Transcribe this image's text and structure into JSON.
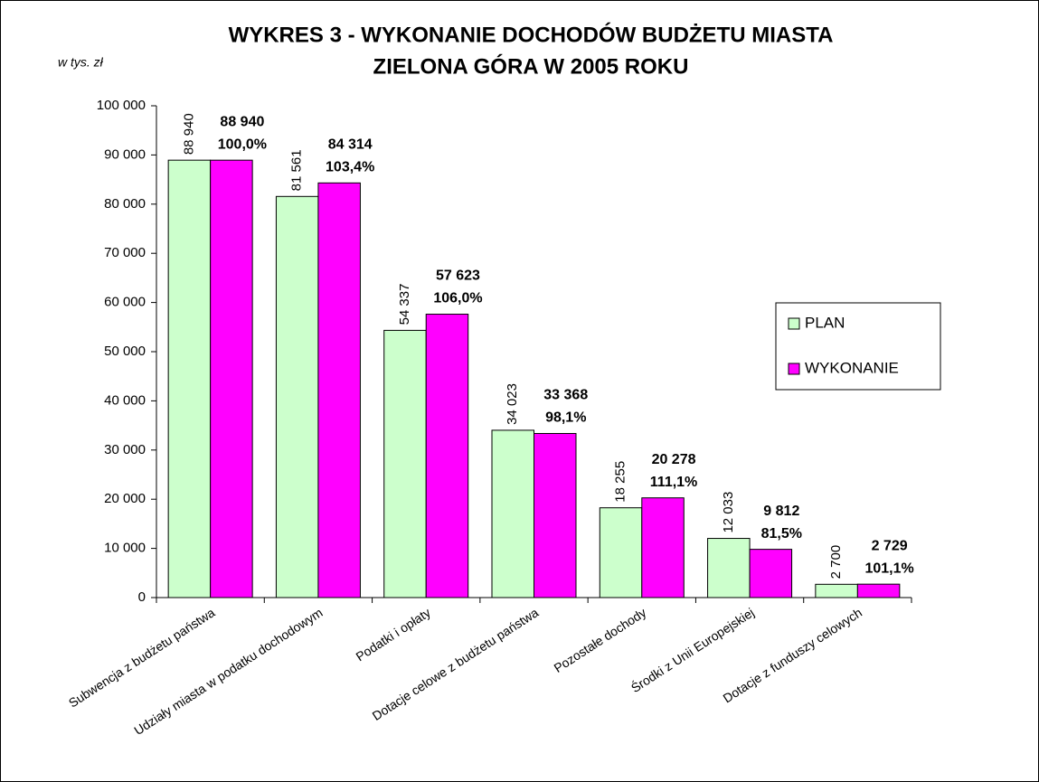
{
  "chart_data": {
    "type": "bar",
    "title": "WYKRES 3 - WYKONANIE DOCHODÓW BUDŻETU MIASTA",
    "subtitle": "ZIELONA GÓRA W 2005 ROKU",
    "y_label": "w tys. zł",
    "categories": [
      "Subwencja z budżetu państwa",
      "Udziały miasta w podatku dochodowym",
      "Podatki i opłaty",
      "Dotacje celowe z budżetu państwa",
      "Pozostałe dochody",
      "Środki z Unii Europejskiej",
      "Dotacje z funduszy celowych"
    ],
    "series": [
      {
        "name": "PLAN",
        "color": "#ccffcc",
        "values": [
          88940,
          81561,
          54337,
          34023,
          18255,
          12033,
          2700
        ],
        "value_labels": [
          "88 940",
          "81 561",
          "54 337",
          "34 023",
          "18 255",
          "12 033",
          "2 700"
        ]
      },
      {
        "name": "WYKONANIE",
        "color": "#ff00ff",
        "values": [
          88940,
          84314,
          57623,
          33368,
          20278,
          9812,
          2729
        ],
        "value_labels": [
          "88 940",
          "84 314",
          "57 623",
          "33 368",
          "20 278",
          "9 812",
          "2 729"
        ],
        "percent_labels": [
          "100,0%",
          "103,4%",
          "106,0%",
          "98,1%",
          "111,1%",
          "81,5%",
          "101,1%"
        ]
      }
    ],
    "ylim": [
      0,
      100000
    ],
    "yticks": [
      {
        "value": 0,
        "label": "0"
      },
      {
        "value": 10000,
        "label": "10 000"
      },
      {
        "value": 20000,
        "label": "20 000"
      },
      {
        "value": 30000,
        "label": "30 000"
      },
      {
        "value": 40000,
        "label": "40 000"
      },
      {
        "value": 50000,
        "label": "50 000"
      },
      {
        "value": 60000,
        "label": "60 000"
      },
      {
        "value": 70000,
        "label": "70 000"
      },
      {
        "value": 80000,
        "label": "80 000"
      },
      {
        "value": 90000,
        "label": "90 000"
      },
      {
        "value": 100000,
        "label": "100 000"
      }
    ],
    "grid": false,
    "legend": "right"
  }
}
